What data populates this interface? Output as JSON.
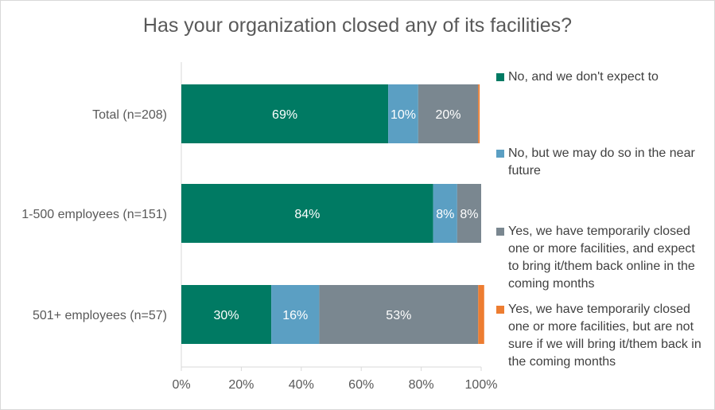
{
  "chart_data": {
    "type": "bar",
    "orientation": "horizontal",
    "stacked": true,
    "title": "Has your organization closed any of its facilities?",
    "categories": [
      "Total (n=208)",
      "1-500 employees (n=151)",
      "501+ employees (n=57)"
    ],
    "series": [
      {
        "name": "No, and we don't expect to",
        "color": "#007a63",
        "values": [
          69,
          84,
          30
        ],
        "labels": [
          "69%",
          "84%",
          "30%"
        ]
      },
      {
        "name": "No, but we may do so in the near future",
        "color": "#5b9fc3",
        "values": [
          10,
          8,
          16
        ],
        "labels": [
          "10%",
          "8%",
          "16%"
        ]
      },
      {
        "name": "Yes, we have temporarily closed one or more facilities, and expect to bring it/them back online in the coming months",
        "color": "#7a8790",
        "values": [
          20,
          8,
          53
        ],
        "labels": [
          "20%",
          "8%",
          "53%"
        ]
      },
      {
        "name": "Yes, we have temporarily closed one or more facilities, but are not sure if we will bring it/them back in the coming months",
        "color": "#ed7d31",
        "values": [
          0.5,
          0,
          2
        ],
        "labels": [
          "",
          "",
          ""
        ]
      }
    ],
    "xlim": [
      0,
      100
    ],
    "xticks": [
      "0%",
      "20%",
      "40%",
      "60%",
      "80%",
      "100%"
    ],
    "grid": false,
    "legend_position": "right"
  }
}
